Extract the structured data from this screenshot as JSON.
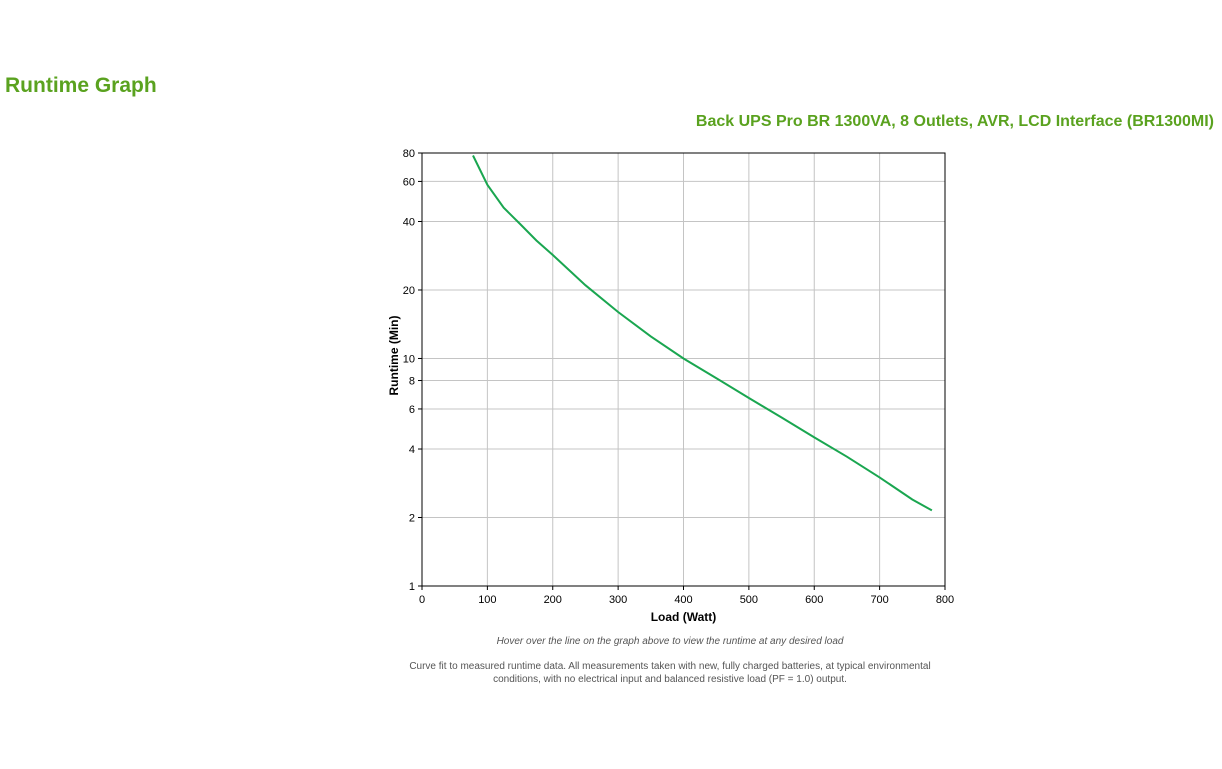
{
  "page": {
    "title": "Runtime Graph",
    "product_title": "Back UPS Pro BR 1300VA, 8 Outlets, AVR, LCD Interface (BR1300MI)",
    "hover_hint": "Hover over the line on the graph above to view the runtime at any desired load",
    "footnote": "Curve fit to measured runtime data. All measurements taken with new, fully charged batteries, at typical environmental conditions, with no electrical input and balanced resistive load (PF = 1.0) output.",
    "accent_color": "#5aa21f"
  },
  "chart_data": {
    "type": "line",
    "title": "",
    "xlabel": "Load (Watt)",
    "ylabel": "Runtime (Min)",
    "xlim": [
      0,
      800
    ],
    "ylim": [
      1,
      80
    ],
    "y_scale": "log",
    "grid": true,
    "x_ticks": [
      0,
      100,
      200,
      300,
      400,
      500,
      600,
      700,
      800
    ],
    "y_ticks": [
      1,
      2,
      4,
      6,
      8,
      10,
      20,
      40,
      60,
      80
    ],
    "line_color": "#1aa650",
    "series": [
      {
        "x": [
          78,
          100,
          125,
          150,
          175,
          200,
          250,
          300,
          350,
          400,
          450,
          500,
          550,
          600,
          650,
          700,
          750,
          780
        ],
        "values": [
          78,
          58,
          46,
          39,
          33,
          28.5,
          21,
          16,
          12.5,
          10,
          8.2,
          6.7,
          5.5,
          4.5,
          3.7,
          3.0,
          2.4,
          2.15
        ]
      }
    ]
  }
}
